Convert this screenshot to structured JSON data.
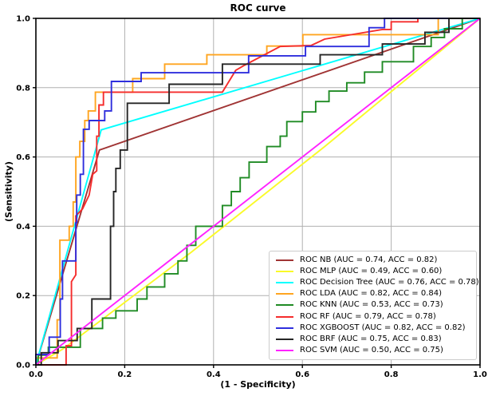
{
  "figure": {
    "title": "ROC curve",
    "xlabel": "(1 - Specificity)",
    "ylabel": "(Sensitivity)"
  },
  "chart_data": {
    "type": "line",
    "title": "ROC curve",
    "xlabel": "(1 - Specificity)",
    "ylabel": "(Sensitivity)",
    "xlim": [
      0,
      1
    ],
    "ylim": [
      0,
      1
    ],
    "xticks": [
      0,
      0.2,
      0.4,
      0.6,
      0.8,
      1.0
    ],
    "xtick_labels": [
      "0.0",
      "0.2",
      "0.4",
      "0.6",
      "0.8",
      "1.0"
    ],
    "yticks": [
      0,
      0.2,
      0.4,
      0.6,
      0.8,
      1.0
    ],
    "ytick_labels": [
      "0.0",
      "0.2",
      "0.4",
      "0.6",
      "0.8",
      "1.0"
    ],
    "grid": true,
    "grid_color": "#b0b0b0",
    "legend_position": "lower right",
    "series": [
      {
        "name": "NB",
        "label": "ROC NB (AUC = 0.74, ACC = 0.82)",
        "auc": 0.74,
        "acc": 0.82,
        "color": "#A03434",
        "points": [
          [
            0,
            0
          ],
          [
            0.143,
            0.62
          ],
          [
            1,
            1
          ]
        ]
      },
      {
        "name": "MLP",
        "label": "ROC MLP (AUC = 0.49, ACC = 0.60)",
        "auc": 0.49,
        "acc": 0.6,
        "color": "#FAFA28",
        "points": [
          [
            0,
            0
          ],
          [
            0.06,
            0.045
          ],
          [
            0.35,
            0.325
          ],
          [
            0.65,
            0.63
          ],
          [
            1,
            1
          ]
        ]
      },
      {
        "name": "Decision Tree",
        "label": "ROC Decision Tree (AUC = 0.76, ACC = 0.78)",
        "auc": 0.76,
        "acc": 0.78,
        "color": "#00FFFF",
        "points": [
          [
            0,
            0
          ],
          [
            0.147,
            0.678
          ],
          [
            1,
            1
          ]
        ]
      },
      {
        "name": "LDA",
        "label": "ROC LDA (AUC = 0.82, ACC = 0.84)",
        "auc": 0.82,
        "acc": 0.84,
        "color": "#FFA520",
        "points": [
          [
            0,
            0
          ],
          [
            0,
            0.02
          ],
          [
            0.048,
            0.02
          ],
          [
            0.048,
            0.13
          ],
          [
            0.054,
            0.13
          ],
          [
            0.054,
            0.36
          ],
          [
            0.075,
            0.36
          ],
          [
            0.075,
            0.4
          ],
          [
            0.084,
            0.4
          ],
          [
            0.084,
            0.47
          ],
          [
            0.09,
            0.47
          ],
          [
            0.09,
            0.6
          ],
          [
            0.099,
            0.6
          ],
          [
            0.099,
            0.645
          ],
          [
            0.11,
            0.645
          ],
          [
            0.11,
            0.705
          ],
          [
            0.118,
            0.705
          ],
          [
            0.118,
            0.733
          ],
          [
            0.134,
            0.733
          ],
          [
            0.134,
            0.787
          ],
          [
            0.218,
            0.787
          ],
          [
            0.218,
            0.826
          ],
          [
            0.29,
            0.826
          ],
          [
            0.29,
            0.868
          ],
          [
            0.385,
            0.868
          ],
          [
            0.385,
            0.895
          ],
          [
            0.52,
            0.895
          ],
          [
            0.52,
            0.92
          ],
          [
            0.601,
            0.92
          ],
          [
            0.601,
            0.953
          ],
          [
            0.906,
            0.953
          ],
          [
            0.906,
            1
          ],
          [
            1,
            1
          ]
        ]
      },
      {
        "name": "KNN",
        "label": "ROC KNN (AUC = 0.53, ACC = 0.73)",
        "auc": 0.53,
        "acc": 0.73,
        "color": "#1F8B24",
        "points": [
          [
            0,
            0
          ],
          [
            0.005,
            0
          ],
          [
            0.005,
            0.028
          ],
          [
            0.028,
            0.028
          ],
          [
            0.028,
            0.051
          ],
          [
            0.1,
            0.051
          ],
          [
            0.1,
            0.105
          ],
          [
            0.15,
            0.105
          ],
          [
            0.15,
            0.135
          ],
          [
            0.18,
            0.135
          ],
          [
            0.18,
            0.156
          ],
          [
            0.228,
            0.156
          ],
          [
            0.228,
            0.19
          ],
          [
            0.25,
            0.19
          ],
          [
            0.25,
            0.225
          ],
          [
            0.29,
            0.225
          ],
          [
            0.29,
            0.263
          ],
          [
            0.32,
            0.263
          ],
          [
            0.32,
            0.3
          ],
          [
            0.34,
            0.3
          ],
          [
            0.34,
            0.345
          ],
          [
            0.36,
            0.345
          ],
          [
            0.36,
            0.4
          ],
          [
            0.42,
            0.4
          ],
          [
            0.42,
            0.46
          ],
          [
            0.44,
            0.46
          ],
          [
            0.44,
            0.5
          ],
          [
            0.46,
            0.5
          ],
          [
            0.46,
            0.54
          ],
          [
            0.48,
            0.54
          ],
          [
            0.48,
            0.585
          ],
          [
            0.52,
            0.585
          ],
          [
            0.52,
            0.63
          ],
          [
            0.55,
            0.63
          ],
          [
            0.55,
            0.66
          ],
          [
            0.565,
            0.66
          ],
          [
            0.565,
            0.702
          ],
          [
            0.6,
            0.702
          ],
          [
            0.6,
            0.73
          ],
          [
            0.63,
            0.73
          ],
          [
            0.63,
            0.76
          ],
          [
            0.66,
            0.76
          ],
          [
            0.66,
            0.79
          ],
          [
            0.7,
            0.79
          ],
          [
            0.7,
            0.814
          ],
          [
            0.74,
            0.814
          ],
          [
            0.74,
            0.845
          ],
          [
            0.78,
            0.845
          ],
          [
            0.78,
            0.875
          ],
          [
            0.85,
            0.875
          ],
          [
            0.85,
            0.919
          ],
          [
            0.89,
            0.919
          ],
          [
            0.89,
            0.945
          ],
          [
            0.92,
            0.945
          ],
          [
            0.92,
            0.97
          ],
          [
            0.96,
            0.97
          ],
          [
            0.96,
            1
          ],
          [
            1,
            1
          ]
        ]
      },
      {
        "name": "RF",
        "label": "ROC RF (AUC = 0.79, ACC = 0.78)",
        "auc": 0.79,
        "acc": 0.78,
        "color": "#F52C2C",
        "points": [
          [
            0,
            0
          ],
          [
            0.068,
            0
          ],
          [
            0.068,
            0.055
          ],
          [
            0.08,
            0.055
          ],
          [
            0.08,
            0.24
          ],
          [
            0.09,
            0.26
          ],
          [
            0.09,
            0.43
          ],
          [
            0.105,
            0.45
          ],
          [
            0.12,
            0.49
          ],
          [
            0.128,
            0.55
          ],
          [
            0.137,
            0.56
          ],
          [
            0.137,
            0.66
          ],
          [
            0.142,
            0.66
          ],
          [
            0.142,
            0.75
          ],
          [
            0.152,
            0.75
          ],
          [
            0.152,
            0.787
          ],
          [
            0.42,
            0.787
          ],
          [
            0.45,
            0.85
          ],
          [
            0.47,
            0.865
          ],
          [
            0.55,
            0.919
          ],
          [
            0.62,
            0.922
          ],
          [
            0.65,
            0.94
          ],
          [
            0.72,
            0.955
          ],
          [
            0.78,
            0.968
          ],
          [
            0.8,
            0.968
          ],
          [
            0.8,
            0.99
          ],
          [
            0.86,
            0.99
          ],
          [
            0.86,
            1
          ],
          [
            1,
            1
          ]
        ]
      },
      {
        "name": "XGBOOST",
        "label": "ROC XGBOOST (AUC = 0.82, ACC = 0.82)",
        "auc": 0.82,
        "acc": 0.82,
        "color": "#2E2EDD",
        "points": [
          [
            0,
            0
          ],
          [
            0,
            0.03
          ],
          [
            0.03,
            0.03
          ],
          [
            0.03,
            0.08
          ],
          [
            0.055,
            0.08
          ],
          [
            0.055,
            0.19
          ],
          [
            0.06,
            0.19
          ],
          [
            0.06,
            0.3
          ],
          [
            0.09,
            0.3
          ],
          [
            0.09,
            0.41
          ],
          [
            0.092,
            0.41
          ],
          [
            0.092,
            0.49
          ],
          [
            0.1,
            0.49
          ],
          [
            0.1,
            0.55
          ],
          [
            0.107,
            0.55
          ],
          [
            0.107,
            0.68
          ],
          [
            0.12,
            0.68
          ],
          [
            0.12,
            0.705
          ],
          [
            0.155,
            0.705
          ],
          [
            0.155,
            0.733
          ],
          [
            0.17,
            0.733
          ],
          [
            0.17,
            0.818
          ],
          [
            0.237,
            0.818
          ],
          [
            0.237,
            0.843
          ],
          [
            0.479,
            0.843
          ],
          [
            0.479,
            0.892
          ],
          [
            0.607,
            0.892
          ],
          [
            0.607,
            0.919
          ],
          [
            0.75,
            0.919
          ],
          [
            0.75,
            0.973
          ],
          [
            0.785,
            0.973
          ],
          [
            0.785,
            1
          ],
          [
            1,
            1
          ]
        ]
      },
      {
        "name": "BRF",
        "label": "ROC BRF (AUC = 0.75, ACC = 0.83)",
        "auc": 0.75,
        "acc": 0.83,
        "color": "#262626",
        "points": [
          [
            0,
            0
          ],
          [
            0.012,
            0
          ],
          [
            0.012,
            0.035
          ],
          [
            0.05,
            0.035
          ],
          [
            0.05,
            0.07
          ],
          [
            0.093,
            0.07
          ],
          [
            0.093,
            0.105
          ],
          [
            0.126,
            0.105
          ],
          [
            0.126,
            0.19
          ],
          [
            0.168,
            0.19
          ],
          [
            0.168,
            0.4
          ],
          [
            0.175,
            0.4
          ],
          [
            0.175,
            0.5
          ],
          [
            0.18,
            0.5
          ],
          [
            0.18,
            0.567
          ],
          [
            0.19,
            0.567
          ],
          [
            0.19,
            0.62
          ],
          [
            0.206,
            0.62
          ],
          [
            0.206,
            0.755
          ],
          [
            0.3,
            0.755
          ],
          [
            0.3,
            0.81
          ],
          [
            0.42,
            0.81
          ],
          [
            0.42,
            0.868
          ],
          [
            0.64,
            0.868
          ],
          [
            0.64,
            0.895
          ],
          [
            0.78,
            0.895
          ],
          [
            0.78,
            0.926
          ],
          [
            0.876,
            0.926
          ],
          [
            0.876,
            0.96
          ],
          [
            0.93,
            0.96
          ],
          [
            0.93,
            1
          ],
          [
            1,
            1
          ]
        ]
      },
      {
        "name": "SVM",
        "label": "ROC SVM (AUC = 0.50, ACC = 0.75)",
        "auc": 0.5,
        "acc": 0.75,
        "color": "#FF22FF",
        "points": [
          [
            0,
            0
          ],
          [
            1,
            1
          ]
        ]
      }
    ]
  }
}
